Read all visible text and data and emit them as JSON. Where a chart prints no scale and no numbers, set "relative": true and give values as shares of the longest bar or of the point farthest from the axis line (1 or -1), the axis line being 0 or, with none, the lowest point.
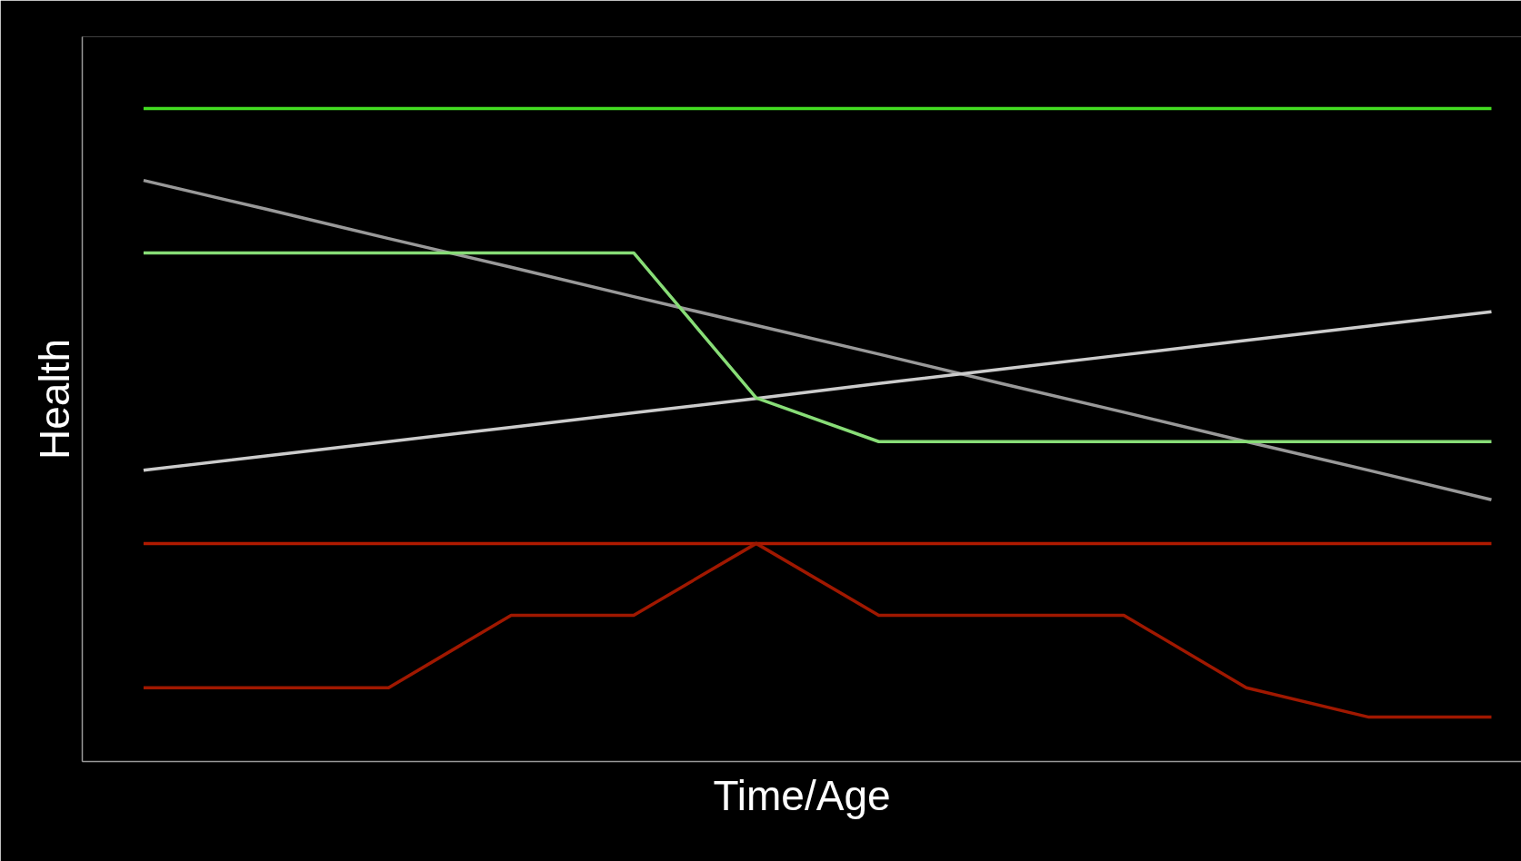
{
  "chart_data": {
    "type": "line",
    "relative": true,
    "xlabel": "Time/Age",
    "ylabel": "Health",
    "grid": false,
    "marker": "none",
    "line_style": "solid",
    "categories": [
      null,
      null,
      null,
      null,
      null,
      null,
      null,
      null,
      null,
      null,
      null,
      null
    ],
    "series": [
      {
        "color": "#44dd22",
        "values": [
          1,
          1,
          1,
          1,
          1,
          1,
          1,
          1,
          1,
          1,
          1,
          1
        ]
      },
      {
        "color": "#999999",
        "values": [
          0.89,
          0.846,
          0.801,
          0.757,
          0.712,
          0.668,
          0.624,
          0.579,
          0.535,
          0.49,
          0.446,
          0.401
        ]
      },
      {
        "color": "#cccccc",
        "values": [
          0.446,
          0.468,
          0.49,
          0.512,
          0.534,
          0.556,
          0.579,
          0.601,
          0.623,
          0.645,
          0.667,
          0.689
        ]
      },
      {
        "color": "#88dd77",
        "values": [
          0.779,
          0.779,
          0.779,
          0.779,
          0.779,
          0.557,
          0.49,
          0.49,
          0.49,
          0.49,
          0.49,
          0.49
        ]
      },
      {
        "color": "#b01a00",
        "values": [
          0.334,
          0.334,
          0.334,
          0.334,
          0.334,
          0.334,
          0.334,
          0.334,
          0.334,
          0.334,
          0.334,
          0.334
        ]
      },
      {
        "color": "#a01800",
        "values": [
          0.113,
          0.113,
          0.113,
          0.224,
          0.224,
          0.334,
          0.224,
          0.224,
          0.224,
          0.113,
          0.068,
          0.068
        ]
      }
    ]
  }
}
